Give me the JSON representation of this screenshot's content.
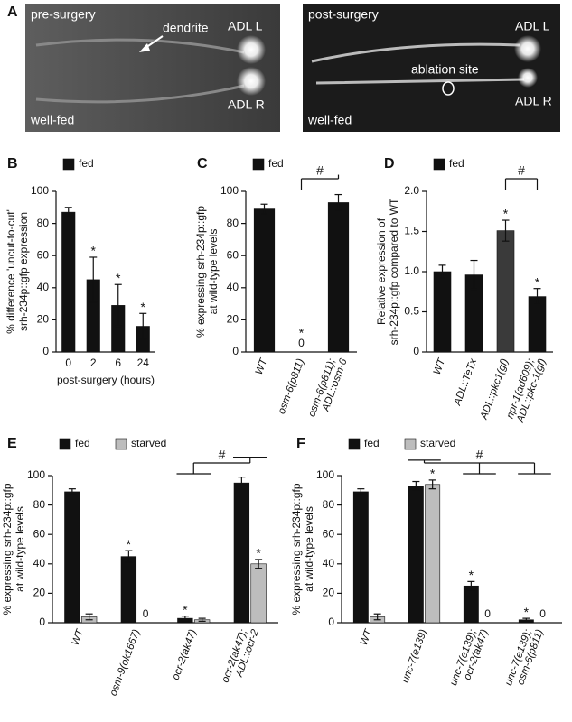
{
  "panel_a": {
    "panel": "A",
    "images": [
      {
        "labels": [
          "pre-surgery",
          "dendrite",
          "ADL L",
          "ADL R",
          "well-fed"
        ]
      },
      {
        "labels": [
          "post-surgery",
          "ADL L",
          "ablation site",
          "ADL R",
          "well-fed"
        ]
      }
    ]
  },
  "chart_data": [
    {
      "type": "bar",
      "panel": "B",
      "categories": [
        [
          "0"
        ],
        [
          "2"
        ],
        [
          "6"
        ],
        [
          "24"
        ]
      ],
      "ylabel": [
        "% difference 'uncut-to-cut'",
        "srh-234p::gfp expression"
      ],
      "xlabel": "post-surgery (hours)",
      "ylim": [
        0,
        100
      ],
      "yticks": [
        0,
        20,
        40,
        60,
        80,
        100
      ],
      "series": [
        {
          "name": "fed",
          "color": "#111111",
          "values": [
            87,
            45,
            29,
            16
          ],
          "errors": [
            3,
            14,
            13,
            8
          ],
          "sig": [
            null,
            "*",
            "*",
            "*"
          ]
        }
      ]
    },
    {
      "type": "bar",
      "panel": "C",
      "rotated_labels": true,
      "categories": [
        [
          "WT"
        ],
        [
          "osm-6(p811)"
        ],
        [
          "osm-6(p811);",
          "ADL::osm-6"
        ]
      ],
      "ylabel": [
        "% expressing srh-234p::gfp",
        "at wild-type levels"
      ],
      "ylim": [
        0,
        100
      ],
      "yticks": [
        0,
        20,
        40,
        60,
        80,
        100
      ],
      "series": [
        {
          "name": "fed",
          "color": "#111111",
          "values": [
            89,
            0,
            93
          ],
          "errors": [
            3,
            0,
            5
          ],
          "value_labels": [
            null,
            "0",
            null
          ],
          "sig": [
            null,
            "*",
            null
          ]
        }
      ],
      "comparison": {
        "label": "#",
        "between": [
          1,
          2
        ]
      }
    },
    {
      "type": "bar",
      "panel": "D",
      "rotated_labels": true,
      "categories": [
        [
          "WT"
        ],
        [
          "ADL::TeTx"
        ],
        [
          "ADL::pkc1(gf)"
        ],
        [
          "npr-1(ad609);",
          "ADL::pkc-1(gf)"
        ]
      ],
      "ylabel": [
        "Relative expression of",
        "srh-234p::gfp compared to WT"
      ],
      "ylim": [
        0,
        2
      ],
      "yticks": [
        0,
        0.5,
        {
          "value": 1,
          "label": "1.0"
        },
        1.5,
        {
          "value": 2,
          "label": "2.0"
        }
      ],
      "series": [
        {
          "name": "fed",
          "color": "#111111",
          "bar_colors": [
            "#111111",
            "#111111",
            "#3a3a3a",
            "#111111"
          ],
          "values": [
            1.0,
            0.96,
            1.51,
            0.69
          ],
          "errors": [
            0.08,
            0.18,
            0.13,
            0.1
          ],
          "sig": [
            null,
            null,
            "*",
            "*"
          ]
        }
      ],
      "comparison": {
        "label": "#",
        "between": [
          2,
          3
        ]
      }
    },
    {
      "type": "bar",
      "panel": "E",
      "rotated_labels": true,
      "categories": [
        [
          "WT"
        ],
        [
          "osm-9(ok1667)"
        ],
        [
          "ocr-2(ak47)"
        ],
        [
          "ocr-2(ak47);",
          "ADL::ocr-2"
        ]
      ],
      "ylabel": [
        "% expressing srh-234p::gfp",
        "at wild-type levels"
      ],
      "ylim": [
        0,
        100
      ],
      "yticks": [
        0,
        20,
        40,
        60,
        80,
        100
      ],
      "series": [
        {
          "name": "fed",
          "color": "#111111",
          "values": [
            89,
            45,
            3,
            95
          ],
          "errors": [
            2,
            4,
            1.5,
            4
          ],
          "sig": [
            null,
            "*",
            "*",
            null
          ]
        },
        {
          "name": "starved",
          "color": "#bdbdbd",
          "values": [
            4,
            0,
            2,
            40
          ],
          "errors": [
            2,
            0,
            1,
            3
          ],
          "value_labels": [
            null,
            "0",
            null,
            null
          ],
          "sig": [
            null,
            null,
            null,
            "*"
          ]
        }
      ],
      "comparison": {
        "label": "#",
        "between": [
          2,
          3
        ]
      }
    },
    {
      "type": "bar",
      "panel": "F",
      "rotated_labels": true,
      "categories": [
        [
          "WT"
        ],
        [
          "unc-7(e139)"
        ],
        [
          "unc-7(e139);",
          "ocr-2(ak47)"
        ],
        [
          "unc-7(e139);",
          "osm-6(p811)"
        ]
      ],
      "ylabel": [
        "% expressing srh-234p::gfp",
        "at wild-type levels"
      ],
      "ylim": [
        0,
        100
      ],
      "yticks": [
        0,
        20,
        40,
        60,
        80,
        100
      ],
      "series": [
        {
          "name": "fed",
          "color": "#111111",
          "values": [
            89,
            93,
            25,
            2
          ],
          "errors": [
            2,
            3,
            3,
            1
          ],
          "sig": [
            null,
            null,
            "*",
            "*"
          ]
        },
        {
          "name": "starved",
          "color": "#bdbdbd",
          "values": [
            4,
            94,
            0,
            0
          ],
          "errors": [
            2,
            3,
            0,
            0
          ],
          "value_labels": [
            null,
            null,
            "0",
            "0"
          ],
          "sig": [
            null,
            "*",
            null,
            null
          ]
        }
      ],
      "comparison": {
        "label": "#",
        "between": [
          1,
          2,
          3
        ]
      }
    }
  ]
}
